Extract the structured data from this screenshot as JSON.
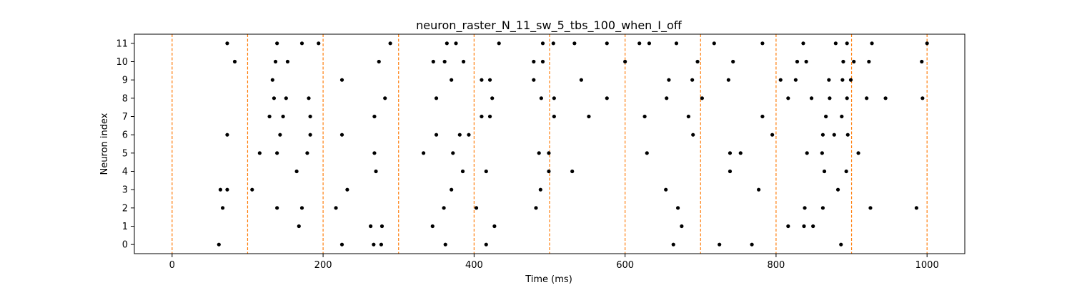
{
  "chart_data": {
    "type": "scatter",
    "title": "neuron_raster_N_11_sw_5_tbs_100_when_I_off",
    "xlabel": "Time (ms)",
    "ylabel": "Neuron index",
    "xlim": [
      -50,
      1050
    ],
    "ylim": [
      -0.5,
      11.5
    ],
    "xticks": [
      0,
      200,
      400,
      600,
      800,
      1000
    ],
    "yticks": [
      0,
      1,
      2,
      3,
      4,
      5,
      6,
      7,
      8,
      9,
      10,
      11
    ],
    "grid": false,
    "marker_color": "#000000",
    "vlines": {
      "x": [
        0,
        100,
        200,
        300,
        400,
        500,
        600,
        700,
        800,
        900,
        1000
      ],
      "color": "#ff7f0e",
      "style": "dashed"
    },
    "spikes": [
      {
        "neuron": 11,
        "times": [
          73,
          139,
          172,
          194,
          289,
          364,
          376,
          433,
          491,
          505,
          533,
          576,
          619,
          632,
          668,
          718,
          782,
          836,
          879,
          894,
          927,
          1000
        ]
      },
      {
        "neuron": 10,
        "times": [
          83,
          137,
          153,
          274,
          346,
          361,
          386,
          479,
          491,
          600,
          696,
          743,
          828,
          840,
          889,
          903,
          923,
          993
        ]
      },
      {
        "neuron": 9,
        "times": [
          133,
          225,
          370,
          410,
          421,
          479,
          542,
          658,
          689,
          737,
          806,
          826,
          870,
          888,
          899
        ]
      },
      {
        "neuron": 8,
        "times": [
          135,
          151,
          181,
          282,
          350,
          424,
          489,
          506,
          576,
          655,
          702,
          816,
          847,
          871,
          894,
          920,
          945,
          994
        ]
      },
      {
        "neuron": 7,
        "times": [
          129,
          147,
          183,
          268,
          410,
          421,
          506,
          552,
          626,
          684,
          782,
          866,
          887
        ]
      },
      {
        "neuron": 6,
        "times": [
          73,
          143,
          183,
          225,
          350,
          381,
          393,
          690,
          795,
          862,
          877,
          895
        ]
      },
      {
        "neuron": 5,
        "times": [
          116,
          139,
          179,
          268,
          333,
          372,
          486,
          499,
          629,
          739,
          753,
          841,
          861,
          909
        ]
      },
      {
        "neuron": 4,
        "times": [
          165,
          270,
          385,
          416,
          499,
          530,
          739,
          864,
          893
        ]
      },
      {
        "neuron": 3,
        "times": [
          64,
          73,
          106,
          232,
          370,
          488,
          654,
          777,
          882
        ]
      },
      {
        "neuron": 2,
        "times": [
          67,
          139,
          172,
          217,
          360,
          403,
          482,
          670,
          838,
          862,
          925,
          986
        ]
      },
      {
        "neuron": 1,
        "times": [
          168,
          263,
          278,
          345,
          427,
          675,
          816,
          837,
          849
        ]
      },
      {
        "neuron": 0,
        "times": [
          62,
          225,
          267,
          277,
          362,
          416,
          664,
          725,
          768,
          886
        ]
      }
    ]
  }
}
